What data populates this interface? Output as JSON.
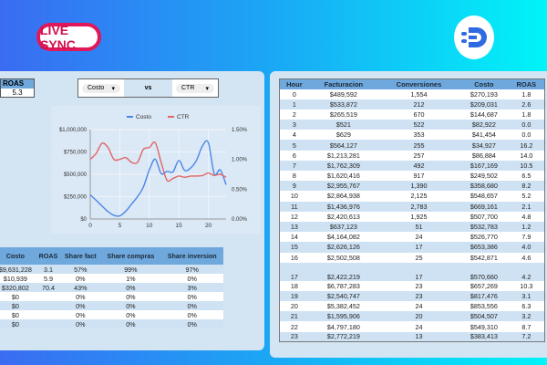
{
  "header": {
    "badge": "LIVE SYNC",
    "logo": "ED"
  },
  "summary": {
    "label": "ROAS",
    "value": "5.3"
  },
  "selector": {
    "left": "Costo",
    "vs": "vs",
    "right": "CTR"
  },
  "chart_data": {
    "type": "line",
    "legend": [
      "Costo",
      "CTR"
    ],
    "legend_position": "top",
    "colors": {
      "Costo": "#4a86e8",
      "CTR": "#e06666"
    },
    "x": [
      0,
      1,
      2,
      3,
      4,
      5,
      6,
      7,
      8,
      9,
      10,
      11,
      12,
      13,
      14,
      15,
      16,
      17,
      18,
      19,
      20,
      21,
      22,
      23
    ],
    "xticks": [
      "0",
      "5",
      "10",
      "15",
      "20"
    ],
    "xlim": [
      0,
      23
    ],
    "yleft_ticks": [
      "$0",
      "$250,000",
      "$500,000",
      "$750,000",
      "$1,000,000"
    ],
    "ylim_left": [
      0,
      1000000
    ],
    "yright_ticks": [
      "0.00%",
      "0.50%",
      "1.00%",
      "1.50%"
    ],
    "ylim_right": [
      0,
      1.5
    ],
    "series": [
      {
        "name": "Costo",
        "axis": "left",
        "values": [
          270193,
          209031,
          144687,
          82922,
          41454,
          34927,
          86884,
          167169,
          249502,
          358680,
          548657,
          669161,
          507700,
          532783,
          526770,
          653386,
          542871,
          570660,
          657269,
          817476,
          853556,
          504507,
          549310,
          383413
        ]
      },
      {
        "name": "CTR",
        "axis": "right",
        "values": [
          1.0,
          1.1,
          1.27,
          1.2,
          1.0,
          1.0,
          1.03,
          0.95,
          0.95,
          1.17,
          1.2,
          1.28,
          0.95,
          0.65,
          0.68,
          0.72,
          0.7,
          0.72,
          0.72,
          0.73,
          0.77,
          0.73,
          0.75,
          0.7
        ]
      }
    ],
    "grid": true
  },
  "bottom_table": {
    "headers": [
      "Costo",
      "ROAS",
      "Share fact",
      "Share compras",
      "Share inversion"
    ],
    "rows": [
      [
        "$9,631,228",
        "3.1",
        "57%",
        "99%",
        "97%"
      ],
      [
        "$10,939",
        "5.9",
        "0%",
        "1%",
        "0%"
      ],
      [
        "$320,802",
        "70.4",
        "43%",
        "0%",
        "3%"
      ],
      [
        "$0",
        "",
        "0%",
        "0%",
        "0%"
      ],
      [
        "$0",
        "",
        "0%",
        "0%",
        "0%"
      ],
      [
        "$0",
        "",
        "0%",
        "0%",
        "0%"
      ],
      [
        "$0",
        "",
        "0%",
        "0%",
        "0%"
      ]
    ]
  },
  "hour_table": {
    "headers": [
      "Hour",
      "Facturacion",
      "Conversiones",
      "Costo",
      "ROAS"
    ],
    "rows": [
      [
        "0",
        "$489,592",
        "1,554",
        "$270,193",
        "1.8"
      ],
      [
        "1",
        "$533,872",
        "212",
        "$209,031",
        "2.6"
      ],
      [
        "2",
        "$265,519",
        "670",
        "$144,687",
        "1.8"
      ],
      [
        "3",
        "$521",
        "522",
        "$82,922",
        "0.0"
      ],
      [
        "4",
        "$629",
        "353",
        "$41,454",
        "0.0"
      ],
      [
        "5",
        "$564,127",
        "255",
        "$34,927",
        "16.2"
      ],
      [
        "6",
        "$1,213,281",
        "257",
        "$86,884",
        "14.0"
      ],
      [
        "7",
        "$1,762,309",
        "492",
        "$167,169",
        "10.5"
      ],
      [
        "8",
        "$1,620,416",
        "917",
        "$249,502",
        "6.5"
      ],
      [
        "9",
        "$2,955,767",
        "1,390",
        "$358,680",
        "8.2"
      ],
      [
        "10",
        "$2,864,938",
        "2,125",
        "$548,657",
        "5.2"
      ],
      [
        "11",
        "$1,436,976",
        "2,783",
        "$669,161",
        "2.1"
      ],
      [
        "12",
        "$2,420,613",
        "1,925",
        "$507,700",
        "4.8"
      ],
      [
        "13",
        "$637,123",
        "51",
        "$532,783",
        "1.2"
      ],
      [
        "14",
        "$4,164,082",
        "24",
        "$526,770",
        "7.9"
      ],
      [
        "15",
        "$2,626,126",
        "17",
        "$653,386",
        "4.0"
      ],
      [
        "16",
        "$2,502,508",
        "25",
        "$542,871",
        "4.6"
      ],
      [
        "17",
        "$2,422,219",
        "17",
        "$570,660",
        "4.2"
      ],
      [
        "18",
        "$6,787,283",
        "23",
        "$657,269",
        "10.3"
      ],
      [
        "19",
        "$2,540,747",
        "23",
        "$817,476",
        "3.1"
      ],
      [
        "20",
        "$5,382,452",
        "24",
        "$853,556",
        "6.3"
      ],
      [
        "21",
        "$1,595,906",
        "20",
        "$504,507",
        "3.2"
      ],
      [
        "22",
        "$4,797,180",
        "24",
        "$549,310",
        "8.7"
      ],
      [
        "23",
        "$2,772,219",
        "13",
        "$383,413",
        "7.2"
      ]
    ]
  }
}
